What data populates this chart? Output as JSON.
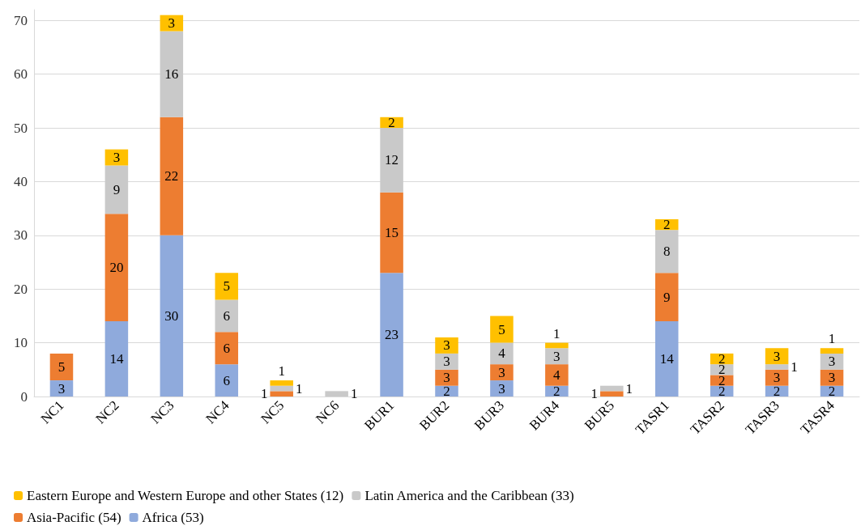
{
  "chart_data": {
    "type": "bar",
    "stacked": true,
    "categories": [
      "NC1",
      "NC2",
      "NC3",
      "NC4",
      "NC5",
      "NC6",
      "BUR1",
      "BUR2",
      "BUR3",
      "BUR4",
      "BUR5",
      "TASR1",
      "TASR2",
      "TASR3",
      "TASR4"
    ],
    "series": [
      {
        "name": "Africa (53)",
        "color": "#8faadc",
        "values": [
          3,
          14,
          30,
          6,
          null,
          null,
          23,
          2,
          3,
          2,
          null,
          14,
          2,
          2,
          2
        ]
      },
      {
        "name": "Asia-Pacific (54)",
        "color": "#ed7d31",
        "values": [
          5,
          20,
          22,
          6,
          1,
          null,
          15,
          3,
          3,
          4,
          1,
          9,
          2,
          3,
          3
        ]
      },
      {
        "name": "Latin America and the Caribbean (33)",
        "color": "#c9c9c9",
        "values": [
          null,
          9,
          16,
          6,
          1,
          1,
          12,
          3,
          4,
          3,
          1,
          8,
          2,
          1,
          3
        ]
      },
      {
        "name": "Eastern Europe and Western Europe and other States (12)",
        "color": "#ffc000",
        "values": [
          null,
          3,
          3,
          5,
          1,
          null,
          2,
          3,
          5,
          1,
          null,
          2,
          2,
          3,
          1
        ]
      }
    ],
    "ylim": [
      0,
      72
    ],
    "yticks": [
      0,
      10,
      20,
      30,
      40,
      50,
      60,
      70
    ],
    "grid": "y",
    "legend": "bottom",
    "data_labels": true
  }
}
